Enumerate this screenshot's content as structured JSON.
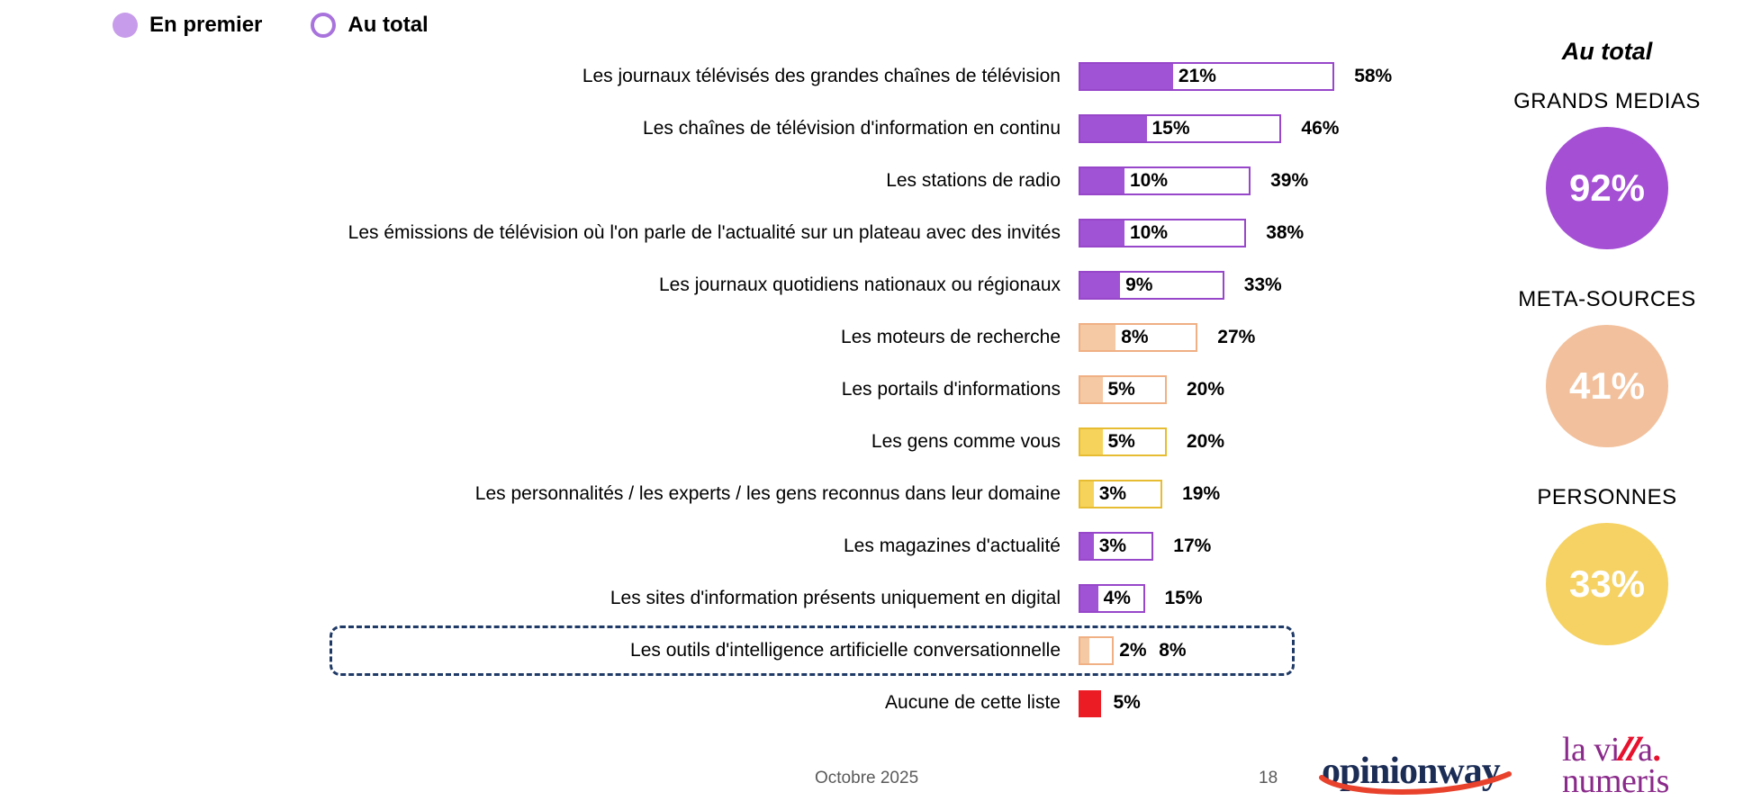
{
  "legend": {
    "items": [
      {
        "label": "En premier",
        "swatch": "filled",
        "fill": "#C79CEA",
        "border": "#C79CEA"
      },
      {
        "label": "Au total",
        "swatch": "outline",
        "fill": "#FFFFFF",
        "border": "#A873DC"
      }
    ]
  },
  "chart_data": {
    "type": "bar",
    "orientation": "horizontal",
    "unit": "%",
    "series": [
      "En premier",
      "Au total"
    ],
    "xlim": [
      0,
      60
    ],
    "rows": [
      {
        "label": "Les journaux télévisés des grandes chaînes de télévision",
        "first": 21,
        "total": 58,
        "fill": "#A153D5",
        "stroke": "#9747C9",
        "highlight": false
      },
      {
        "label": "Les chaînes de télévision d'information en continu",
        "first": 15,
        "total": 46,
        "fill": "#A153D5",
        "stroke": "#9747C9",
        "highlight": false
      },
      {
        "label": "Les stations de radio",
        "first": 10,
        "total": 39,
        "fill": "#A153D5",
        "stroke": "#9747C9",
        "highlight": false
      },
      {
        "label": "Les émissions de télévision où l'on parle de l'actualité sur un plateau avec des invités",
        "first": 10,
        "total": 38,
        "fill": "#A153D5",
        "stroke": "#9747C9",
        "highlight": false
      },
      {
        "label": "Les journaux quotidiens nationaux ou régionaux",
        "first": 9,
        "total": 33,
        "fill": "#A153D5",
        "stroke": "#9747C9",
        "highlight": false
      },
      {
        "label": "Les moteurs de recherche",
        "first": 8,
        "total": 27,
        "fill": "#F5C9A3",
        "stroke": "#F0B084",
        "highlight": false
      },
      {
        "label": "Les portails d'informations",
        "first": 5,
        "total": 20,
        "fill": "#F5C9A3",
        "stroke": "#F0B084",
        "highlight": false
      },
      {
        "label": "Les gens comme vous",
        "first": 5,
        "total": 20,
        "fill": "#F6D45C",
        "stroke": "#E7BC33",
        "highlight": false
      },
      {
        "label": "Les personnalités / les experts / les gens reconnus dans leur domaine",
        "first": 3,
        "total": 19,
        "fill": "#F6D45C",
        "stroke": "#E7BC33",
        "highlight": false
      },
      {
        "label": "Les magazines d'actualité",
        "first": 3,
        "total": 17,
        "fill": "#A153D5",
        "stroke": "#9747C9",
        "highlight": false
      },
      {
        "label": "Les sites d'information présents uniquement en digital",
        "first": 4,
        "total": 15,
        "fill": "#A153D5",
        "stroke": "#9747C9",
        "highlight": false
      },
      {
        "label": "Les outils d'intelligence artificielle conversationnelle",
        "first": 2,
        "total": 8,
        "fill": "#F5C9A3",
        "stroke": "#F0B084",
        "highlight": true
      },
      {
        "label": "Aucune de cette liste",
        "first": 5,
        "total": null,
        "fill": "#EC1C24",
        "stroke": "#EC1C24",
        "highlight": false
      }
    ]
  },
  "summary": {
    "title": "Au total",
    "items": [
      {
        "label": "GRANDS MEDIAS",
        "value": "92%",
        "color": "#A44FD4"
      },
      {
        "label": "META-SOURCES",
        "value": "41%",
        "color": "#F2C09C"
      },
      {
        "label": "PERSONNES",
        "value": "33%",
        "color": "#F5D263"
      }
    ]
  },
  "footer": {
    "date": "Octobre 2025",
    "page": "18"
  },
  "logos": {
    "opinionway": "opinionway",
    "villa": {
      "pre": "la vi",
      "slashes": "ll",
      "post": "a",
      "dot": ".",
      "line2": "numeris"
    }
  }
}
